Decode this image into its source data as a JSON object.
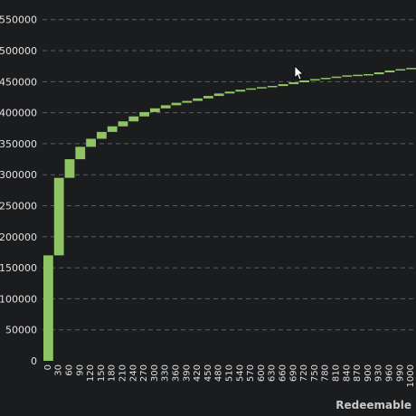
{
  "chart_data": {
    "type": "bar",
    "subtype": "waterfall",
    "xlabel": "Redeemable",
    "ylabel": "",
    "ylim": [
      0,
      570000
    ],
    "yticks": [
      0,
      50000,
      100000,
      150000,
      200000,
      250000,
      300000,
      350000,
      400000,
      450000,
      500000,
      550000
    ],
    "ytick_labels": [
      "0",
      "50000",
      "100000",
      "150000",
      "200000",
      "250000",
      "300000",
      "350000",
      "400000",
      "450000",
      "500000",
      "550000"
    ],
    "grid": true,
    "bar_color": "#8fc464",
    "categories": [
      "0",
      "30",
      "60",
      "90",
      "120",
      "150",
      "180",
      "210",
      "240",
      "270",
      "300",
      "330",
      "360",
      "390",
      "420",
      "450",
      "480",
      "510",
      "540",
      "570",
      "600",
      "630",
      "660",
      "690",
      "720",
      "750",
      "780",
      "810",
      "840",
      "870",
      "900",
      "930",
      "960",
      "990",
      "1000"
    ],
    "series": [
      {
        "start": [
          0,
          170000,
          295000,
          325000,
          345000,
          358000,
          369000,
          378000,
          386000,
          394000,
          401000,
          407000,
          412000,
          416000,
          419000,
          423000,
          427000,
          431000,
          434000,
          437000,
          439000,
          441000,
          443000,
          446000,
          449000,
          452000,
          454000,
          456000,
          458000,
          459000,
          460000,
          462000,
          465000,
          468000,
          470000
        ],
        "end": [
          170000,
          295000,
          325000,
          345000,
          358000,
          369000,
          378000,
          386000,
          394000,
          401000,
          407000,
          412000,
          416000,
          419000,
          423000,
          427000,
          431000,
          434000,
          437000,
          439000,
          441000,
          443000,
          446000,
          449000,
          452000,
          454000,
          456000,
          458000,
          459000,
          460000,
          462000,
          465000,
          468000,
          470000,
          472000
        ]
      }
    ]
  }
}
